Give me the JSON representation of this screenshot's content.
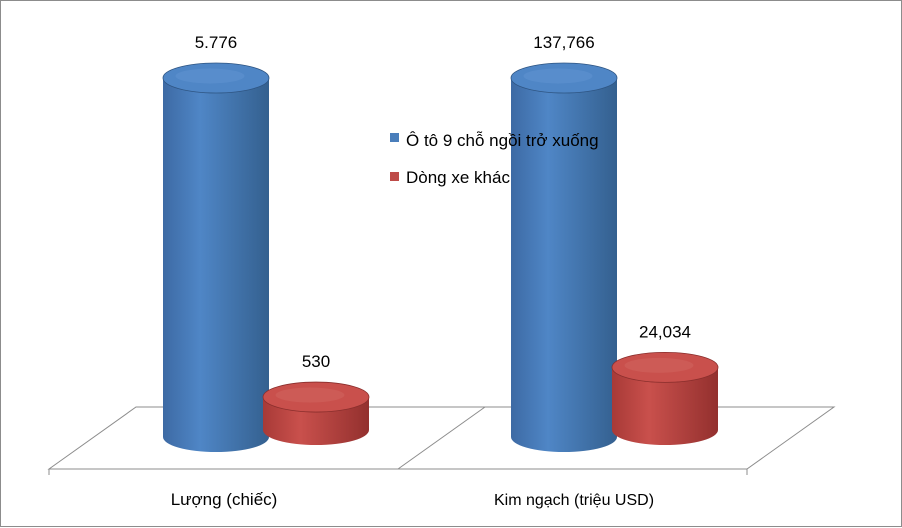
{
  "chart_data": {
    "type": "bar",
    "style": "3d-cylinder",
    "categories": [
      "Lượng (chiếc)",
      "Kim ngạch (triệu USD)"
    ],
    "series": [
      {
        "name": "Ô tô 9 chỗ ngồi trở xuống",
        "color": "#4a7ebb",
        "values": [
          5776,
          137.766
        ],
        "labels": [
          "5.776",
          "137,766"
        ]
      },
      {
        "name": "Dòng xe khác",
        "color": "#be4b48",
        "values": [
          530,
          24.034
        ],
        "labels": [
          "530",
          "24,034"
        ]
      }
    ],
    "grid": false,
    "legend_position": "top-right"
  }
}
